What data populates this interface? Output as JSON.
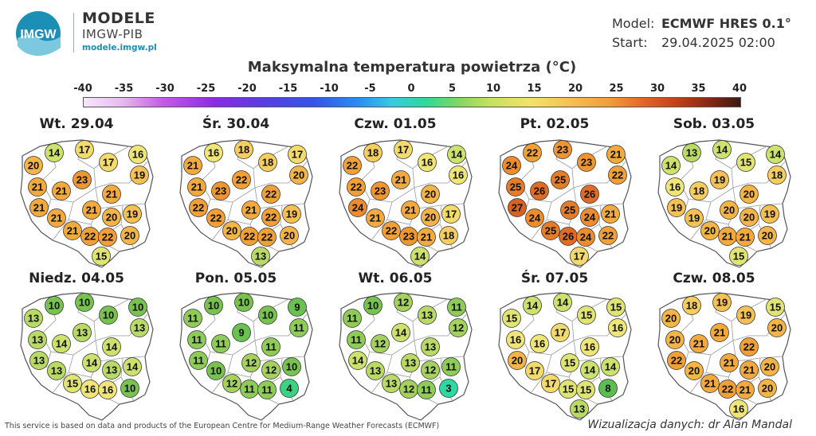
{
  "header": {
    "brand_title": "MODELE",
    "brand_subtitle": "IMGW-PIB",
    "brand_url": "modele.imgw.pl",
    "logo_text": "IMGW",
    "model_label": "Model:",
    "model_value": "ECMWF HRES 0.1°",
    "start_label": "Start:",
    "start_value": "29.04.2025 02:00"
  },
  "title": "Maksymalna temperatura powietrza (°C)",
  "scale": {
    "ticks": [
      "-40",
      "-35",
      "-30",
      "-25",
      "-20",
      "-15",
      "-10",
      "-5",
      "0",
      "5",
      "10",
      "15",
      "20",
      "25",
      "30",
      "35",
      "40"
    ],
    "min": -40,
    "max": 40
  },
  "maps": [
    {
      "day": "Wt. 29.04",
      "values": [
        20,
        14,
        17,
        17,
        16,
        19,
        21,
        21,
        23,
        21,
        21,
        21,
        21,
        20,
        19,
        21,
        22,
        22,
        20,
        15
      ]
    },
    {
      "day": "Śr. 30.04",
      "values": [
        21,
        16,
        18,
        18,
        17,
        20,
        21,
        23,
        22,
        22,
        22,
        22,
        21,
        22,
        19,
        20,
        22,
        22,
        20,
        13
      ]
    },
    {
      "day": "Czw. 01.05",
      "values": [
        22,
        18,
        17,
        16,
        14,
        16,
        22,
        23,
        21,
        20,
        24,
        21,
        21,
        20,
        17,
        22,
        23,
        21,
        18,
        14
      ]
    },
    {
      "day": "Pt. 02.05",
      "values": [
        24,
        22,
        23,
        23,
        21,
        22,
        25,
        26,
        25,
        26,
        27,
        24,
        25,
        24,
        21,
        25,
        26,
        24,
        22,
        17
      ]
    },
    {
      "day": "Sob. 03.05",
      "values": [
        14,
        13,
        14,
        15,
        14,
        18,
        16,
        18,
        19,
        20,
        19,
        19,
        20,
        20,
        19,
        20,
        21,
        21,
        20,
        15
      ]
    },
    {
      "day": "Niedz. 04.05",
      "values": [
        13,
        10,
        10,
        10,
        10,
        13,
        13,
        14,
        13,
        14,
        13,
        13,
        14,
        13,
        14,
        15,
        16,
        16,
        10,
        null
      ]
    },
    {
      "day": "Pon. 05.05",
      "values": [
        11,
        10,
        10,
        10,
        9,
        11,
        11,
        11,
        9,
        11,
        11,
        10,
        12,
        12,
        10,
        12,
        11,
        11,
        4,
        null
      ]
    },
    {
      "day": "Wt. 06.05",
      "values": [
        11,
        10,
        12,
        13,
        11,
        12,
        11,
        12,
        14,
        13,
        14,
        13,
        13,
        12,
        11,
        13,
        12,
        11,
        3,
        null
      ]
    },
    {
      "day": "Śr. 07.05",
      "values": [
        15,
        14,
        14,
        15,
        15,
        16,
        16,
        16,
        17,
        16,
        20,
        17,
        15,
        14,
        14,
        17,
        15,
        15,
        8,
        13
      ]
    },
    {
      "day": "Czw. 08.05",
      "values": [
        20,
        18,
        19,
        19,
        15,
        20,
        20,
        21,
        21,
        22,
        22,
        20,
        21,
        21,
        20,
        21,
        22,
        21,
        20,
        16
      ]
    }
  ],
  "footer": {
    "disclaimer": "This service is based on data and products of the European Centre for Medium-Range Weather Forecasts (ECMWF)",
    "credit": "Wizualizacja danych: dr Alan Mandal"
  }
}
